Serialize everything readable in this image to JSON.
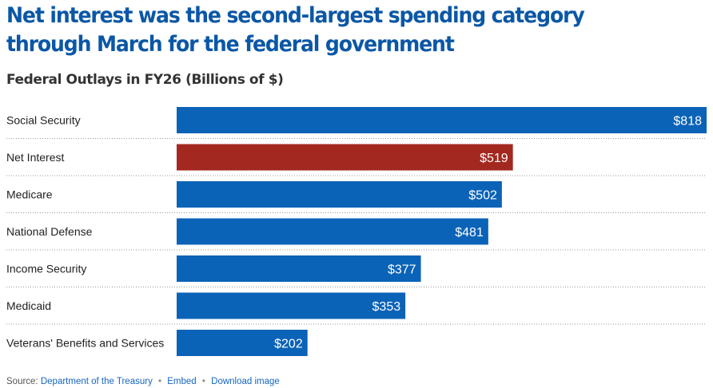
{
  "chart_data": {
    "type": "bar",
    "orientation": "horizontal",
    "title": "Net interest was the second-largest spending category through March for the federal government",
    "subtitle": "Federal Outlays in FY26 (Billions of $)",
    "categories": [
      "Social Security",
      "Net Interest",
      "Medicare",
      "National Defense",
      "Income Security",
      "Medicaid",
      "Veterans' Benefits and Services"
    ],
    "values": [
      818,
      519,
      502,
      481,
      377,
      353,
      202
    ],
    "value_labels": [
      "$818",
      "$519",
      "$502",
      "$481",
      "$377",
      "$353",
      "$202"
    ],
    "highlight_category": "Net Interest",
    "colors": {
      "default": "#0b63b8",
      "highlight": "#a3281f"
    },
    "xlim": [
      0,
      818
    ]
  },
  "footer": {
    "source_label": "Source:",
    "source_link": "Department of the Treasury",
    "separator": "•",
    "embed": "Embed",
    "download": "Download image"
  }
}
